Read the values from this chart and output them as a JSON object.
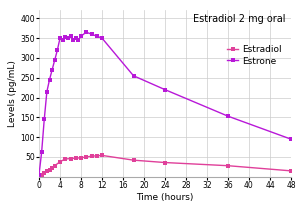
{
  "title": "Estradiol 2 mg oral",
  "xlabel": "Time (hours)",
  "ylabel": "Levels (pg/mL)",
  "estradiol_time": [
    0,
    0.5,
    1,
    1.5,
    2,
    2.5,
    3,
    4,
    5,
    6,
    7,
    8,
    9,
    10,
    11,
    12,
    18,
    24,
    36,
    48
  ],
  "estradiol_values": [
    2,
    5,
    10,
    14,
    18,
    22,
    28,
    38,
    45,
    46,
    47,
    48,
    50,
    52,
    53,
    54,
    42,
    36,
    28,
    15
  ],
  "estrone_time": [
    0,
    0.5,
    1,
    1.5,
    2,
    2.5,
    3,
    3.5,
    4,
    4.5,
    5,
    5.5,
    6,
    6.5,
    7,
    7.5,
    8,
    9,
    10,
    11,
    12,
    18,
    24,
    36,
    48
  ],
  "estrone_values": [
    5,
    62,
    145,
    215,
    245,
    270,
    295,
    320,
    350,
    345,
    352,
    350,
    355,
    345,
    350,
    345,
    355,
    365,
    360,
    355,
    350,
    255,
    220,
    153,
    95
  ],
  "estradiol_color": "#e0409a",
  "estrone_color": "#b818d8",
  "xlim": [
    0,
    48
  ],
  "ylim": [
    0,
    420
  ],
  "yticks": [
    50,
    100,
    150,
    200,
    250,
    300,
    350,
    400
  ],
  "xticks": [
    0,
    4,
    8,
    12,
    16,
    20,
    24,
    28,
    32,
    36,
    40,
    44,
    48
  ],
  "grid_color": "#cccccc",
  "bg_color": "#ffffff",
  "title_fontsize": 7,
  "label_fontsize": 6.5,
  "tick_fontsize": 5.5,
  "legend_fontsize": 6.5,
  "marker_size": 2.5
}
